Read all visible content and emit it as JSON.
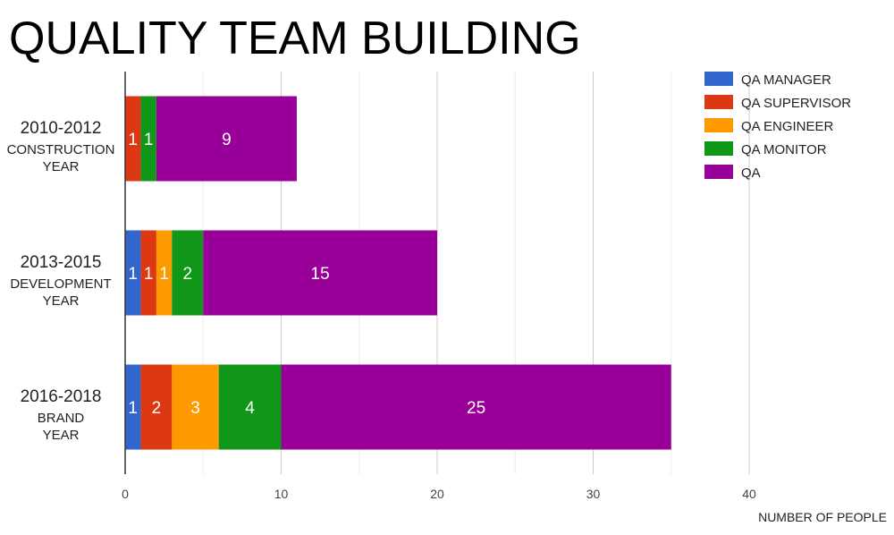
{
  "chart_data": {
    "type": "bar",
    "orientation": "horizontal",
    "stacked": true,
    "title": "QUALITY TEAM BUILDING",
    "xlabel": "NUMBER OF PEOPLE",
    "ylabel": "",
    "xlim": [
      0,
      40
    ],
    "x_ticks": [
      0,
      10,
      20,
      30,
      40
    ],
    "grid": true,
    "legend_position": "top-right",
    "categories": [
      {
        "period": "2010-2012",
        "name": "CONSTRUCTION YEAR"
      },
      {
        "period": "2013-2015",
        "name": "DEVELOPMENT YEAR"
      },
      {
        "period": "2016-2018",
        "name": "BRAND YEAR"
      }
    ],
    "series": [
      {
        "name": "QA MANAGER",
        "color": "#3366cc",
        "values": [
          0,
          1,
          1
        ]
      },
      {
        "name": "QA SUPERVISOR",
        "color": "#dc3912",
        "values": [
          1,
          1,
          2
        ]
      },
      {
        "name": "QA ENGINEER",
        "color": "#ff9900",
        "values": [
          0,
          1,
          3
        ]
      },
      {
        "name": "QA MONITOR",
        "color": "#109618",
        "values": [
          1,
          2,
          4
        ]
      },
      {
        "name": "QA",
        "color": "#990099",
        "values": [
          9,
          15,
          25
        ]
      }
    ]
  }
}
